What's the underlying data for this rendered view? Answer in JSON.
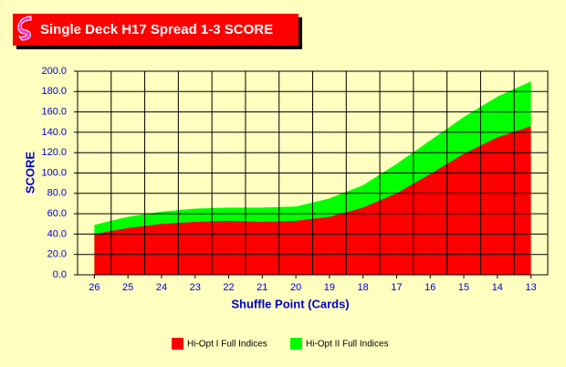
{
  "chart_data": {
    "type": "area",
    "title": "Single Deck H17 Spread 1-3 SCORE",
    "x_label": "Shuffle Point (Cards)",
    "y_label": "SCORE",
    "categories": [
      "26",
      "25",
      "24",
      "23",
      "22",
      "21",
      "20",
      "19",
      "18",
      "17",
      "16",
      "15",
      "14",
      "13"
    ],
    "series": [
      {
        "name": "Hi-Opt I Full Indices",
        "color": "#ff0000",
        "values": [
          40,
          46,
          50,
          52,
          53,
          52,
          53,
          57,
          66,
          80,
          99,
          119,
          135,
          146
        ]
      },
      {
        "name": "Hi-Opt II Full Indices",
        "color": "#00ff00",
        "values": [
          49,
          57,
          62,
          65,
          66,
          66,
          67,
          75,
          88,
          109,
          132,
          155,
          175,
          190
        ]
      }
    ],
    "ylim": [
      0,
      200
    ],
    "yticks": [
      {
        "value": 0,
        "label": "0.0"
      },
      {
        "value": 20,
        "label": "20.0"
      },
      {
        "value": 40,
        "label": "40.0"
      },
      {
        "value": 60,
        "label": "60.0"
      },
      {
        "value": 80,
        "label": "80.0"
      },
      {
        "value": 100,
        "label": "100.0"
      },
      {
        "value": 120,
        "label": "120.0"
      },
      {
        "value": 140,
        "label": "140.0"
      },
      {
        "value": 160,
        "label": "160.0"
      },
      {
        "value": 180,
        "label": "180.0"
      },
      {
        "value": 200,
        "label": "200.0"
      }
    ],
    "grid": true
  }
}
